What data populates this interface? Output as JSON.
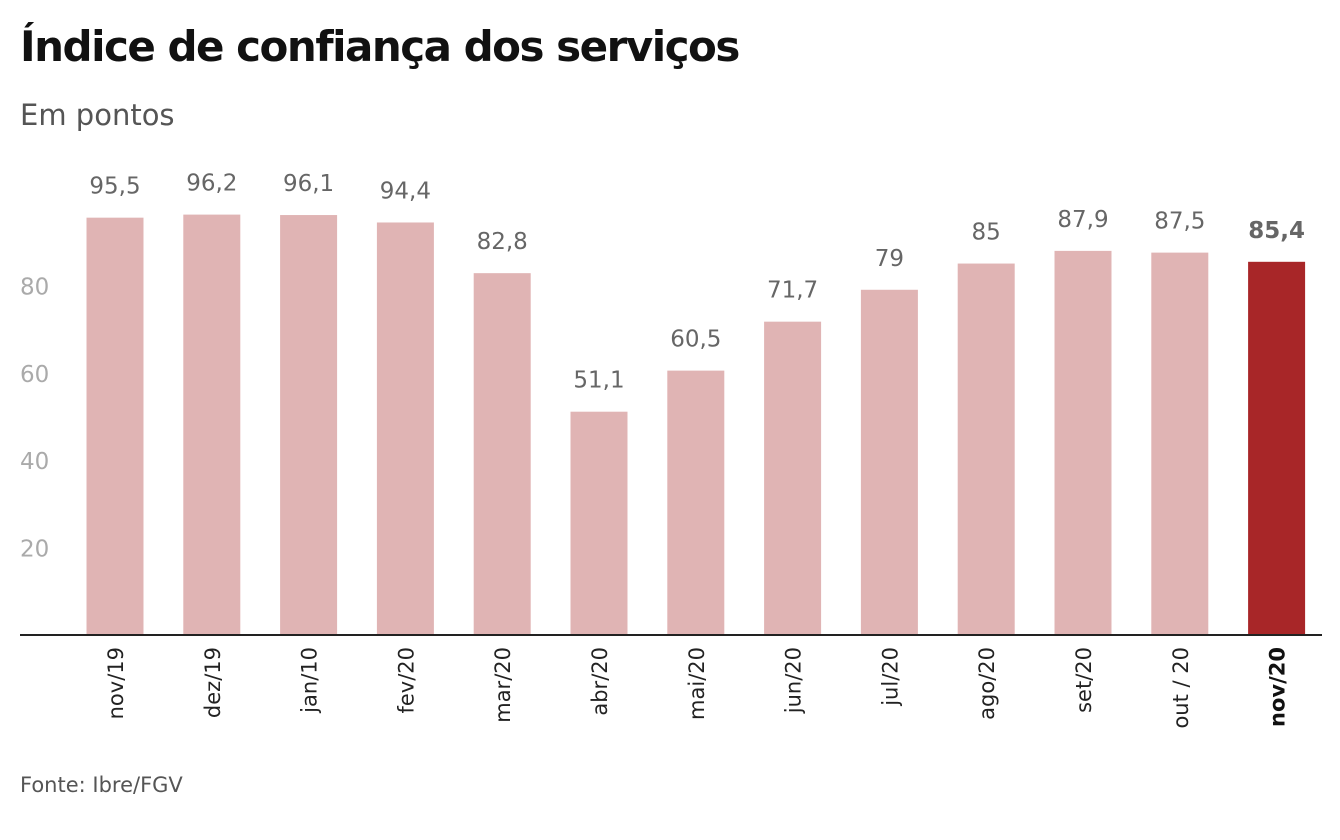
{
  "title": "Índice de confiança dos serviços",
  "subtitle": "Em pontos",
  "source": "Fonte: Ibre/FGV",
  "colors": {
    "bar": "#e0b4b4",
    "highlight": "#a82628",
    "axis": "#222222"
  },
  "chart_data": {
    "type": "bar",
    "title": "Índice de confiança dos serviços",
    "subtitle": "Em pontos",
    "categories": [
      "nov/19",
      "dez/19",
      "jan/10",
      "fev/20",
      "mar/20",
      "abr/20",
      "mai/20",
      "jun/20",
      "jul/20",
      "ago/20",
      "set/20",
      "out / 20",
      "nov/20"
    ],
    "values": [
      95.5,
      96.2,
      96.1,
      94.4,
      82.8,
      51.1,
      60.5,
      71.7,
      79,
      85,
      87.9,
      87.5,
      85.4
    ],
    "value_labels": [
      "95,5",
      "96,2",
      "96,1",
      "94,4",
      "82,8",
      "51,1",
      "60,5",
      "71,7",
      "79",
      "85",
      "87,9",
      "87,5",
      "85,4"
    ],
    "highlight_index": 12,
    "yticks": [
      20,
      40,
      60,
      80
    ],
    "ylim": [
      0,
      100
    ],
    "grid": false,
    "legend": "none"
  }
}
